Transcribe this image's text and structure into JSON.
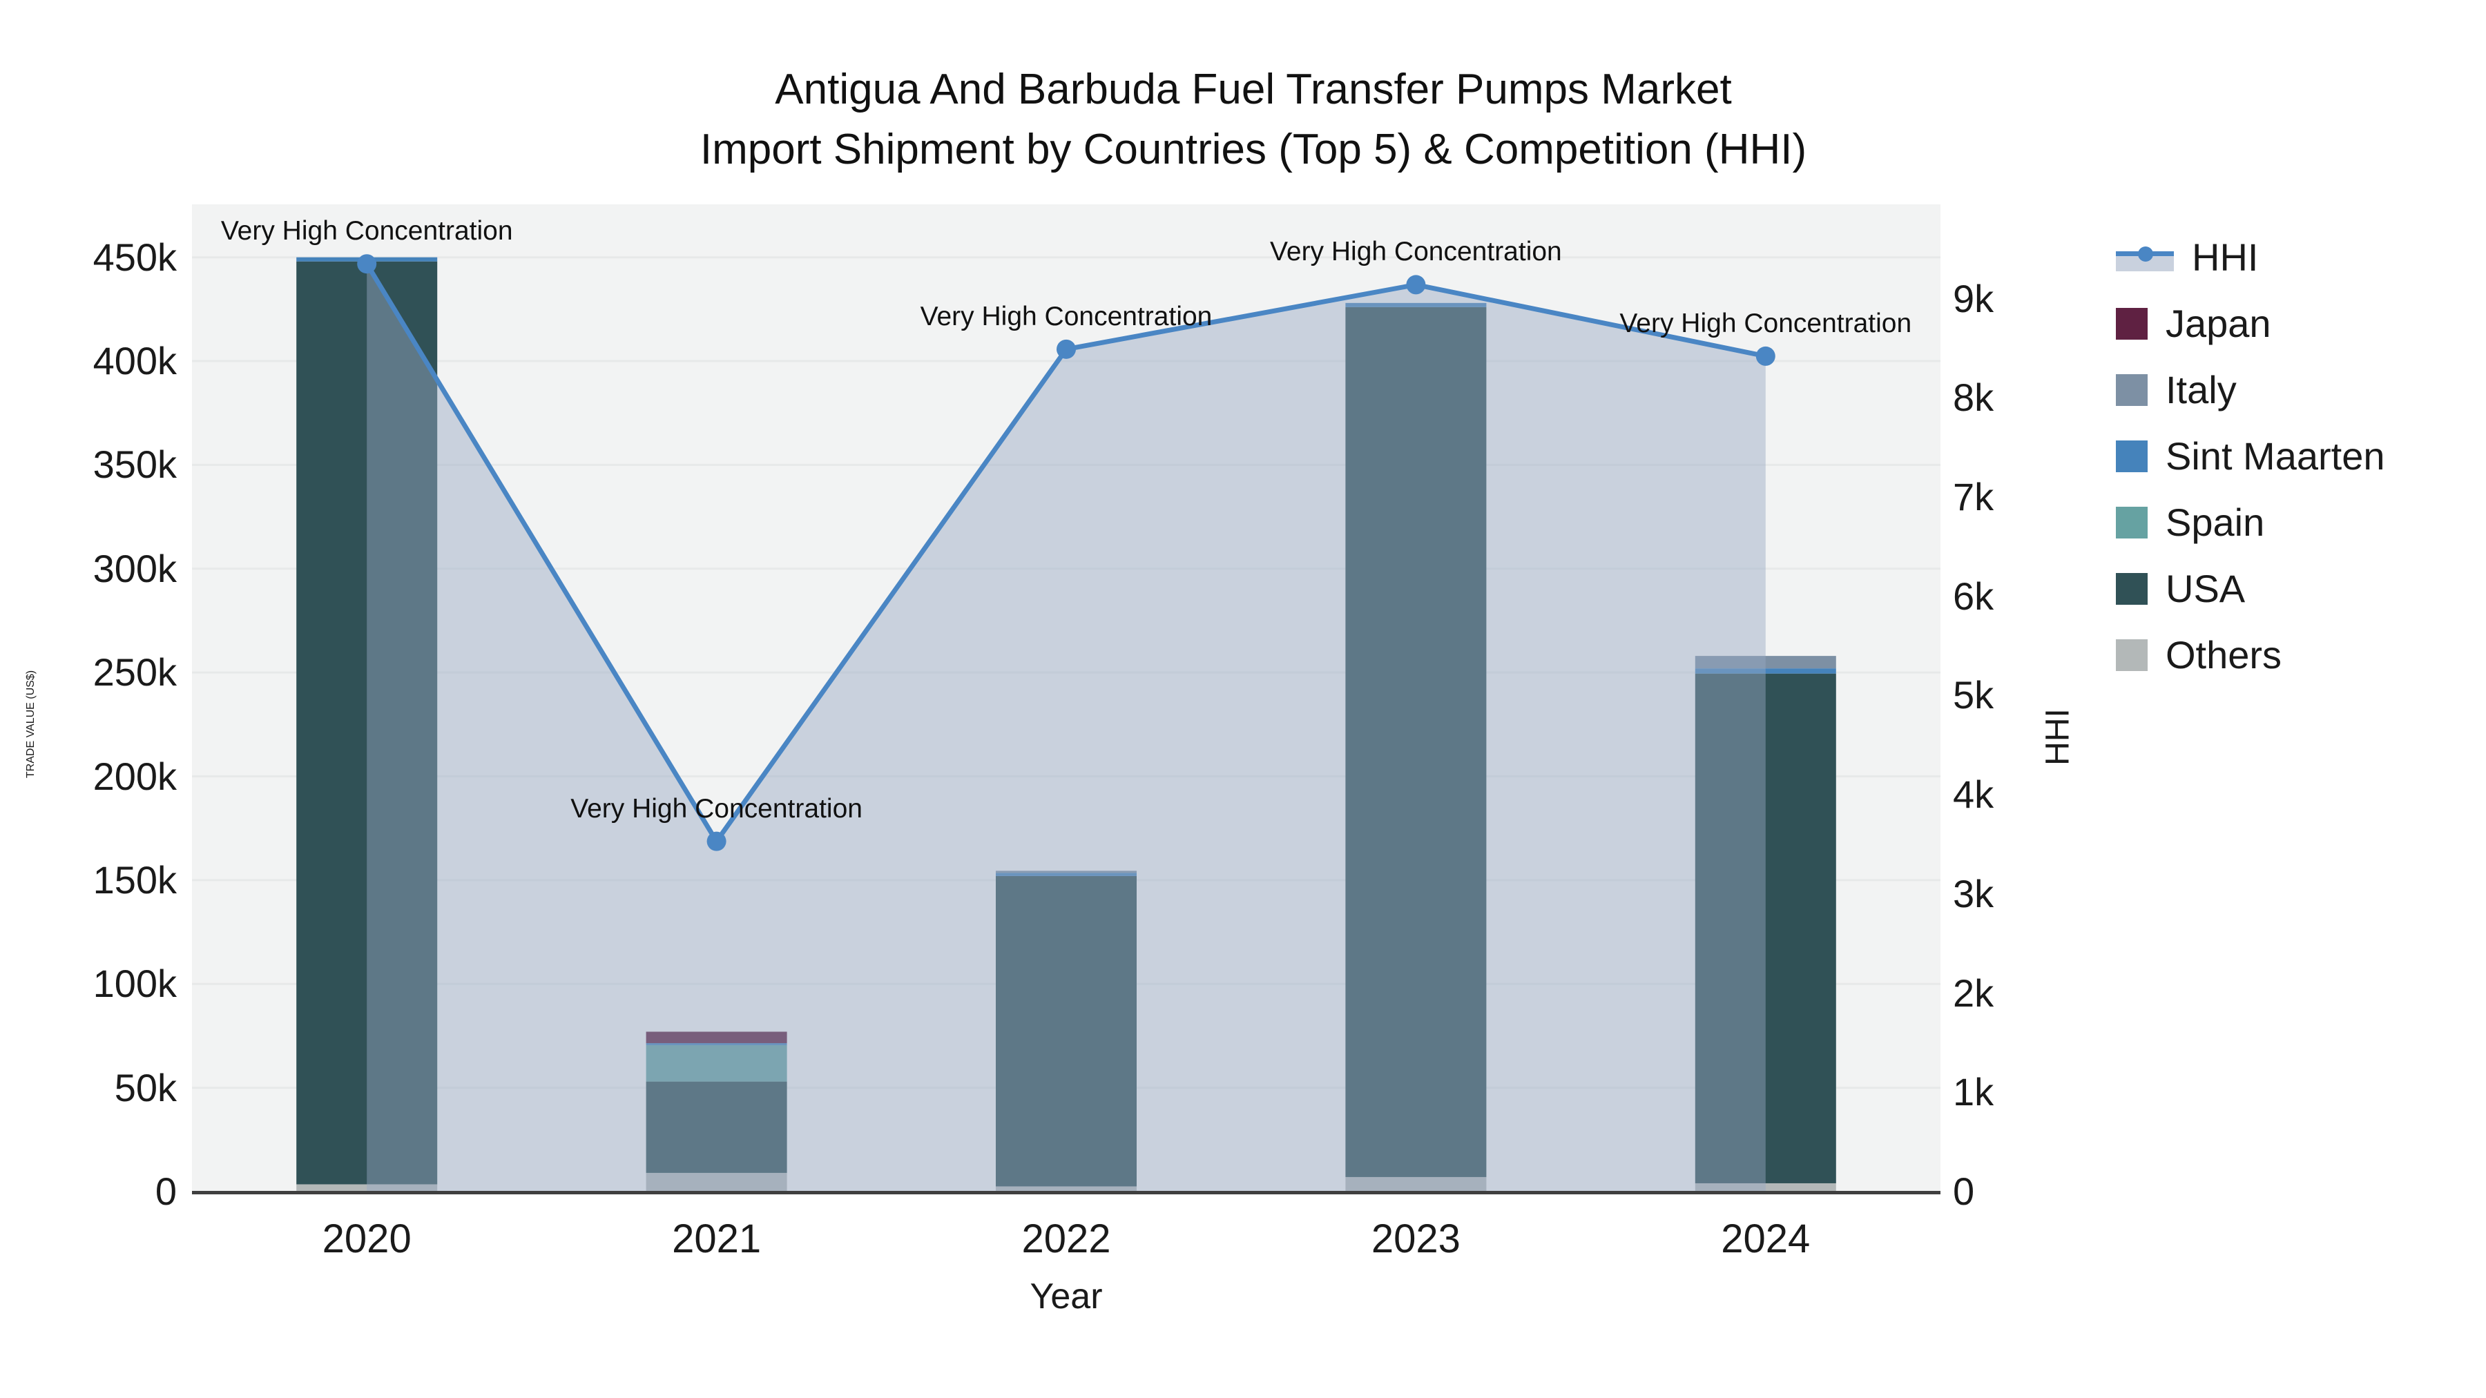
{
  "title": {
    "line1": "Antigua And Barbuda Fuel Transfer Pumps Market",
    "line2": "Import Shipment by Countries (Top 5) & Competition (HHI)"
  },
  "axis_titles": {
    "y_left": "TRADE VALUE (US$)",
    "y_right": "HHI",
    "x": "Year"
  },
  "legend": [
    {
      "label": "HHI",
      "type": "line",
      "color": "#4a86c4"
    },
    {
      "label": "Japan",
      "type": "patch",
      "color": "#5f2142"
    },
    {
      "label": "Italy",
      "type": "patch",
      "color": "#7d90a4"
    },
    {
      "label": "Sint Maarten",
      "type": "patch",
      "color": "#4583bb"
    },
    {
      "label": "Spain",
      "type": "patch",
      "color": "#66a2a2"
    },
    {
      "label": "USA",
      "type": "patch",
      "color": "#305156"
    },
    {
      "label": "Others",
      "type": "patch",
      "color": "#b3b8b8"
    }
  ],
  "colors": {
    "plot_bg": "#f2f3f3",
    "grid": "#e7e9e9",
    "axis_line": "#3f3f3f",
    "hhi_line": "#4a86c4",
    "hhi_area_fill": "rgba(150,168,195,0.45)",
    "text": "#1a1a1a"
  },
  "chart_data": {
    "type": "combo_stacked_bar_line",
    "categories": [
      "2020",
      "2021",
      "2022",
      "2023",
      "2024"
    ],
    "bar_series": [
      {
        "name": "Others",
        "color": "#b3b8b8",
        "values": [
          3500,
          9000,
          2500,
          7000,
          4000
        ]
      },
      {
        "name": "USA",
        "color": "#305156",
        "values": [
          444500,
          44000,
          149500,
          419000,
          245500
        ]
      },
      {
        "name": "Spain",
        "color": "#66a2a2",
        "values": [
          0,
          17500,
          0,
          0,
          0
        ]
      },
      {
        "name": "Sint Maarten",
        "color": "#4583bb",
        "values": [
          2000,
          1000,
          1500,
          2000,
          2500
        ]
      },
      {
        "name": "Italy",
        "color": "#7d90a4",
        "values": [
          0,
          0,
          1000,
          0,
          6000
        ]
      },
      {
        "name": "Japan",
        "color": "#5f2142",
        "values": [
          0,
          5500,
          0,
          0,
          0
        ]
      }
    ],
    "bar_stack_order_bottom_to_top": [
      "Others",
      "USA",
      "Spain",
      "Sint Maarten",
      "Italy",
      "Japan"
    ],
    "bar_totals": [
      450000,
      77000,
      154500,
      428000,
      258000
    ],
    "line_series": {
      "name": "HHI",
      "axis": "right",
      "values": [
        9350,
        3530,
        8490,
        9140,
        8420
      ],
      "marker": "circle"
    },
    "annotations": [
      {
        "category": "2020",
        "text": "Very High Concentration"
      },
      {
        "category": "2021",
        "text": "Very High Concentration"
      },
      {
        "category": "2022",
        "text": "Very High Concentration"
      },
      {
        "category": "2023",
        "text": "Very High Concentration"
      },
      {
        "category": "2024",
        "text": "Very High Concentration"
      }
    ],
    "xlabel": "Year",
    "ylabel_left": "TRADE VALUE (US$)",
    "ylabel_right": "HHI",
    "ylim_left": [
      0,
      475500
    ],
    "ylim_right": [
      0,
      9950
    ],
    "yticks_left": [
      "0",
      "50k",
      "100k",
      "150k",
      "200k",
      "250k",
      "300k",
      "350k",
      "400k",
      "450k"
    ],
    "ytick_values_left": [
      0,
      50000,
      100000,
      150000,
      200000,
      250000,
      300000,
      350000,
      400000,
      450000
    ],
    "yticks_right": [
      "0",
      "1k",
      "2k",
      "3k",
      "4k",
      "5k",
      "6k",
      "7k",
      "8k",
      "9k"
    ],
    "ytick_values_right": [
      0,
      1000,
      2000,
      3000,
      4000,
      5000,
      6000,
      7000,
      8000,
      9000
    ],
    "grid": "horizontal",
    "legend_position": "right"
  }
}
